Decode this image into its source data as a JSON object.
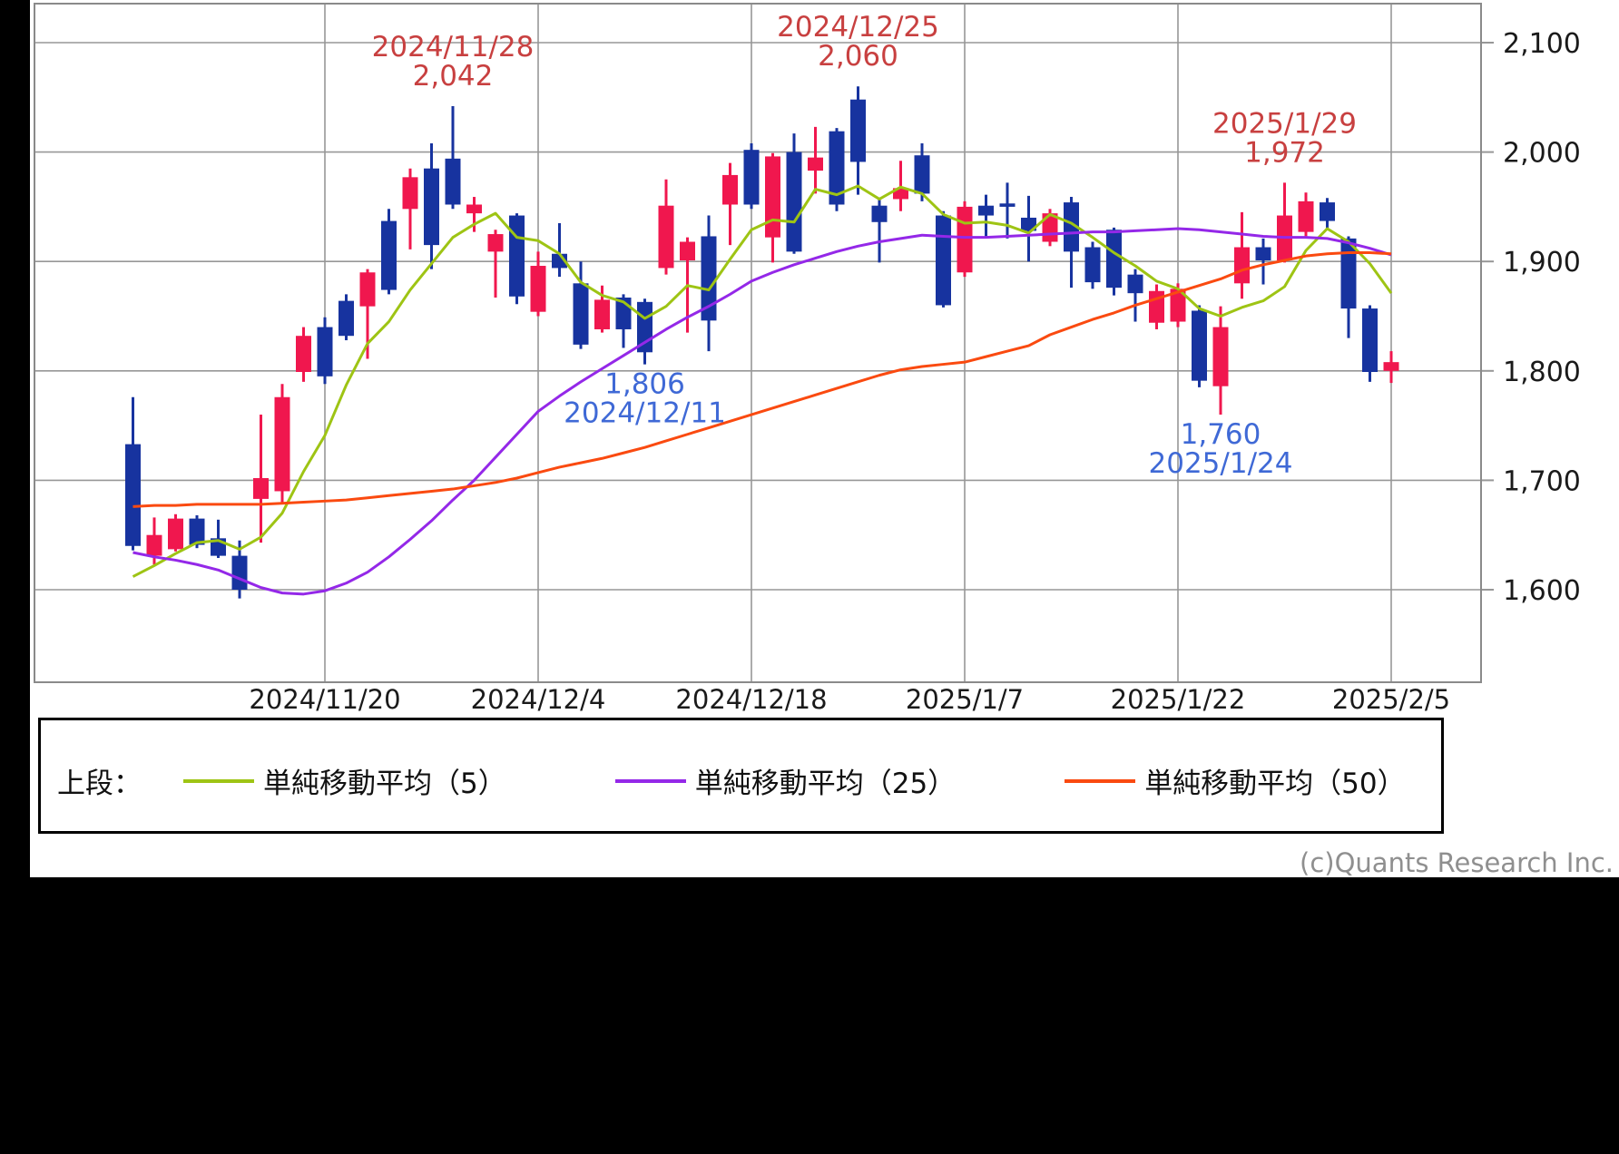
{
  "copyright": "(c)Quants Research Inc.",
  "legend": {
    "prefix": "上段：",
    "items": [
      {
        "label": "単純移動平均（5）",
        "color": "#9ec414"
      },
      {
        "label": "単純移動平均（25）",
        "color": "#9428e8"
      },
      {
        "label": "単純移動平均（50）",
        "color": "#fa4a10"
      }
    ]
  },
  "chart_data": {
    "type": "candlestick",
    "ylim": [
      1600,
      2100
    ],
    "grid": true,
    "colors": {
      "up_body": "#f0174e",
      "down_body": "#17339f",
      "ma5": "#9ec414",
      "ma25": "#9428e8",
      "ma50": "#fa4a10",
      "gridline": "#979797",
      "border": "#8a8a8a",
      "axis_text": "#1a1a1a",
      "annotation_high": "#c84040",
      "annotation_low": "#3f69d6"
    },
    "y_ticks": [
      {
        "label": "2,100",
        "value": 2100
      },
      {
        "label": "2,000",
        "value": 2000
      },
      {
        "label": "1,900",
        "value": 1900
      },
      {
        "label": "1,800",
        "value": 1800
      },
      {
        "label": "1,700",
        "value": 1700
      },
      {
        "label": "1,600",
        "value": 1600
      }
    ],
    "x_ticks": [
      {
        "label": "2024/11/20",
        "index": 9
      },
      {
        "label": "2024/12/4",
        "index": 19
      },
      {
        "label": "2024/12/18",
        "index": 29
      },
      {
        "label": "2025/1/7",
        "index": 39
      },
      {
        "label": "2025/1/22",
        "index": 49
      },
      {
        "label": "2025/2/5",
        "index": 59
      }
    ],
    "dates": [
      "2024/11/7",
      "2024/11/8",
      "2024/11/11",
      "2024/11/12",
      "2024/11/13",
      "2024/11/14",
      "2024/11/15",
      "2024/11/18",
      "2024/11/19",
      "2024/11/20",
      "2024/11/21",
      "2024/11/22",
      "2024/11/25",
      "2024/11/26",
      "2024/11/27",
      "2024/11/28",
      "2024/11/29",
      "2024/12/2",
      "2024/12/3",
      "2024/12/4",
      "2024/12/5",
      "2024/12/6",
      "2024/12/9",
      "2024/12/10",
      "2024/12/11",
      "2024/12/12",
      "2024/12/13",
      "2024/12/16",
      "2024/12/17",
      "2024/12/18",
      "2024/12/19",
      "2024/12/20",
      "2024/12/23",
      "2024/12/24",
      "2024/12/25",
      "2024/12/26",
      "2024/12/27",
      "2024/12/30",
      "2025/1/6",
      "2025/1/7",
      "2025/1/8",
      "2025/1/9",
      "2025/1/10",
      "2025/1/14",
      "2025/1/15",
      "2025/1/16",
      "2025/1/17",
      "2025/1/20",
      "2025/1/21",
      "2025/1/22",
      "2025/1/23",
      "2025/1/24",
      "2025/1/27",
      "2025/1/28",
      "2025/1/29",
      "2025/1/30",
      "2025/1/31",
      "2025/2/3",
      "2025/2/4",
      "2025/2/5"
    ],
    "ohlc": [
      [
        1733,
        1776,
        1636,
        1640
      ],
      [
        1631,
        1666,
        1623,
        1650
      ],
      [
        1637,
        1669,
        1635,
        1665
      ],
      [
        1665,
        1668,
        1638,
        1641
      ],
      [
        1647,
        1664,
        1629,
        1631
      ],
      [
        1631,
        1645,
        1592,
        1600
      ],
      [
        1683,
        1760,
        1643,
        1702
      ],
      [
        1690,
        1788,
        1680,
        1776
      ],
      [
        1799,
        1840,
        1790,
        1832
      ],
      [
        1840,
        1849,
        1788,
        1795
      ],
      [
        1864,
        1870,
        1828,
        1832
      ],
      [
        1859,
        1893,
        1811,
        1890
      ],
      [
        1937,
        1948,
        1870,
        1874
      ],
      [
        1948,
        1985,
        1911,
        1977
      ],
      [
        1985,
        2008,
        1893,
        1915
      ],
      [
        1994,
        2042,
        1948,
        1952
      ],
      [
        1944,
        1959,
        1927,
        1952
      ],
      [
        1909,
        1929,
        1867,
        1925
      ],
      [
        1942,
        1944,
        1861,
        1868
      ],
      [
        1854,
        1909,
        1850,
        1896
      ],
      [
        1907,
        1935,
        1886,
        1894
      ],
      [
        1880,
        1900,
        1820,
        1824
      ],
      [
        1838,
        1878,
        1835,
        1865
      ],
      [
        1867,
        1870,
        1821,
        1838
      ],
      [
        1863,
        1866,
        1806,
        1817
      ],
      [
        1894,
        1975,
        1888,
        1951
      ],
      [
        1901,
        1922,
        1835,
        1918
      ],
      [
        1923,
        1942,
        1818,
        1846
      ],
      [
        1952,
        1990,
        1915,
        1979
      ],
      [
        2002,
        2008,
        1948,
        1952
      ],
      [
        1922,
        1999,
        1899,
        1996
      ],
      [
        2000,
        2017,
        1907,
        1909
      ],
      [
        1983,
        2023,
        1962,
        1995
      ],
      [
        2019,
        2022,
        1946,
        1952
      ],
      [
        2048,
        2060,
        1961,
        1991
      ],
      [
        1951,
        1957,
        1899,
        1936
      ],
      [
        1957,
        1992,
        1946,
        1967
      ],
      [
        1997,
        2008,
        1955,
        1962
      ],
      [
        1942,
        1946,
        1858,
        1860
      ],
      [
        1890,
        1955,
        1886,
        1950
      ],
      [
        1951,
        1961,
        1923,
        1942
      ],
      [
        1953,
        1972,
        1921,
        1950
      ],
      [
        1940,
        1960,
        1900,
        1928
      ],
      [
        1918,
        1948,
        1914,
        1944
      ],
      [
        1954,
        1959,
        1876,
        1909
      ],
      [
        1913,
        1918,
        1875,
        1881
      ],
      [
        1929,
        1931,
        1869,
        1876
      ],
      [
        1888,
        1893,
        1845,
        1871
      ],
      [
        1844,
        1879,
        1838,
        1873
      ],
      [
        1845,
        1880,
        1840,
        1875
      ],
      [
        1855,
        1860,
        1785,
        1791
      ],
      [
        1786,
        1859,
        1760,
        1840
      ],
      [
        1880,
        1945,
        1866,
        1913
      ],
      [
        1913,
        1921,
        1879,
        1901
      ],
      [
        1901,
        1972,
        1899,
        1942
      ],
      [
        1927,
        1963,
        1923,
        1955
      ],
      [
        1954,
        1958,
        1929,
        1937
      ],
      [
        1921,
        1923,
        1830,
        1857
      ],
      [
        1857,
        1860,
        1790,
        1799
      ],
      [
        1800,
        1818,
        1789,
        1808
      ]
    ],
    "series": [
      {
        "name": "単純移動平均（5）",
        "color": "#9ec414",
        "values": [
          1612,
          1622,
          1633,
          1643,
          1645,
          1637,
          1648,
          1670,
          1708,
          1741,
          1787,
          1825,
          1845,
          1874,
          1898,
          1922,
          1934,
          1944,
          1922,
          1919,
          1907,
          1881,
          1869,
          1863,
          1848,
          1859,
          1878,
          1874,
          1902,
          1929,
          1938,
          1936,
          1966,
          1961,
          1969,
          1957,
          1968,
          1962,
          1943,
          1935,
          1936,
          1933,
          1926,
          1943,
          1935,
          1922,
          1908,
          1896,
          1882,
          1875,
          1857,
          1850,
          1858,
          1864,
          1877,
          1910,
          1930,
          1918,
          1898,
          1871
        ]
      },
      {
        "name": "単純移動平均（25）",
        "color": "#9428e8",
        "values": [
          1634,
          1630,
          1627,
          1623,
          1618,
          1610,
          1602,
          1597,
          1596,
          1599,
          1606,
          1616,
          1630,
          1646,
          1663,
          1682,
          1700,
          1721,
          1742,
          1763,
          1777,
          1790,
          1802,
          1814,
          1826,
          1838,
          1849,
          1859,
          1870,
          1882,
          1890,
          1897,
          1903,
          1909,
          1914,
          1918,
          1921,
          1924,
          1923,
          1922,
          1922,
          1923,
          1924,
          1925,
          1926,
          1927,
          1927,
          1928,
          1929,
          1930,
          1929,
          1927,
          1925,
          1923,
          1922,
          1922,
          1921,
          1917,
          1912,
          1906
        ]
      },
      {
        "name": "単純移動平均（50）",
        "color": "#fa4a10",
        "values": [
          1676,
          1677,
          1677,
          1678,
          1678,
          1678,
          1678,
          1679,
          1680,
          1681,
          1682,
          1684,
          1686,
          1688,
          1690,
          1692,
          1695,
          1698,
          1702,
          1707,
          1712,
          1716,
          1720,
          1725,
          1730,
          1736,
          1742,
          1748,
          1754,
          1760,
          1766,
          1772,
          1778,
          1784,
          1790,
          1796,
          1801,
          1804,
          1806,
          1808,
          1813,
          1818,
          1823,
          1833,
          1840,
          1847,
          1853,
          1860,
          1866,
          1872,
          1878,
          1884,
          1892,
          1897,
          1901,
          1905,
          1907,
          1908,
          1908,
          1907
        ]
      }
    ],
    "annotations": [
      {
        "index": 15,
        "price": 2042,
        "lines": [
          "2024/11/28",
          "2,042"
        ],
        "placement": "above",
        "color": "#c84040"
      },
      {
        "index": 34,
        "price": 2060,
        "lines": [
          "2024/12/25",
          "2,060"
        ],
        "placement": "above",
        "color": "#c84040"
      },
      {
        "index": 54,
        "price": 1972,
        "lines": [
          "2025/1/29",
          "1,972"
        ],
        "placement": "above",
        "color": "#c84040"
      },
      {
        "index": 24,
        "price": 1806,
        "lines": [
          "1,806",
          "2024/12/11"
        ],
        "placement": "below",
        "color": "#3f69d6"
      },
      {
        "index": 51,
        "price": 1760,
        "lines": [
          "1,760",
          "2025/1/24"
        ],
        "placement": "below",
        "color": "#3f69d6"
      }
    ]
  }
}
